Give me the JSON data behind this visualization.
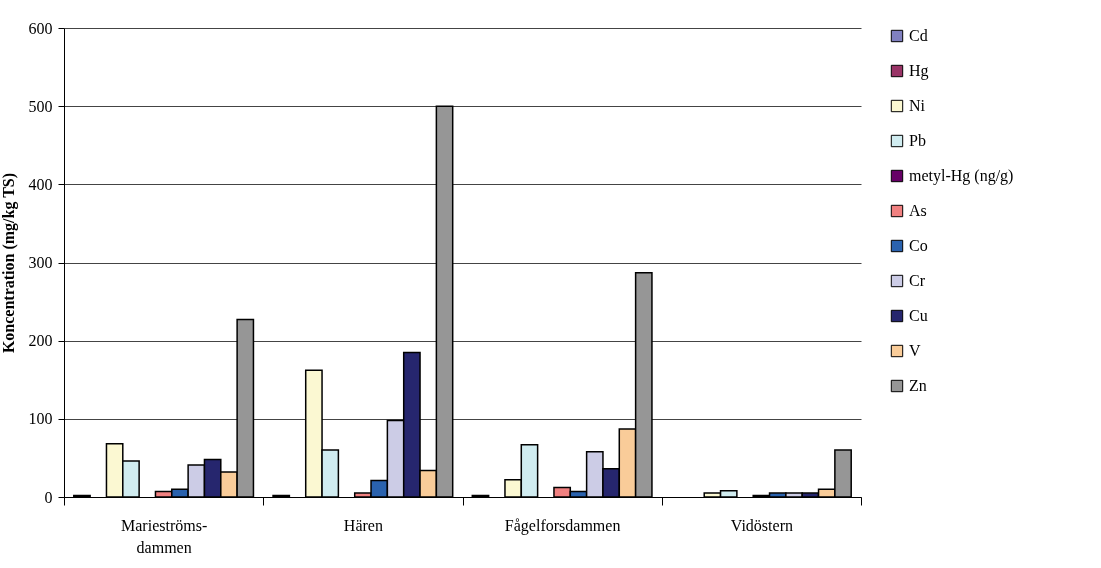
{
  "chart_data": {
    "type": "bar",
    "ylabel": "Koncentration (mg/kg TS)",
    "categories": [
      "Marieströms-dammen",
      "Hären",
      "Fågelforsdammen",
      "Vidöstern"
    ],
    "series": [
      {
        "name": "Cd",
        "color": "#8080c0",
        "values": [
          2,
          2,
          2,
          null
        ]
      },
      {
        "name": "Hg",
        "color": "#993366",
        "values": [
          null,
          null,
          null,
          null
        ]
      },
      {
        "name": "Ni",
        "color": "#fbf8d2",
        "values": [
          68,
          162,
          22,
          5
        ]
      },
      {
        "name": "Pb",
        "color": "#d0ecf0",
        "values": [
          46,
          60,
          67,
          8
        ]
      },
      {
        "name": "metyl-Hg (ng/g)",
        "color": "#660066",
        "values": [
          null,
          null,
          null,
          null
        ]
      },
      {
        "name": "As",
        "color": "#f08080",
        "values": [
          7,
          5,
          12,
          2
        ]
      },
      {
        "name": "Co",
        "color": "#2a62ae",
        "values": [
          10,
          21,
          7,
          5
        ]
      },
      {
        "name": "Cr",
        "color": "#cccce6",
        "values": [
          41,
          98,
          58,
          5
        ]
      },
      {
        "name": "Cu",
        "color": "#26266e",
        "values": [
          48,
          185,
          36,
          5
        ]
      },
      {
        "name": "V",
        "color": "#f9cc99",
        "values": [
          32,
          34,
          87,
          10
        ]
      },
      {
        "name": "Zn",
        "color": "#969696",
        "values": [
          227,
          500,
          287,
          60
        ]
      }
    ],
    "ylim": [
      0,
      600
    ],
    "yticks": [
      0,
      100,
      200,
      300,
      400,
      500,
      600
    ],
    "grid": "y",
    "legend": "right"
  }
}
